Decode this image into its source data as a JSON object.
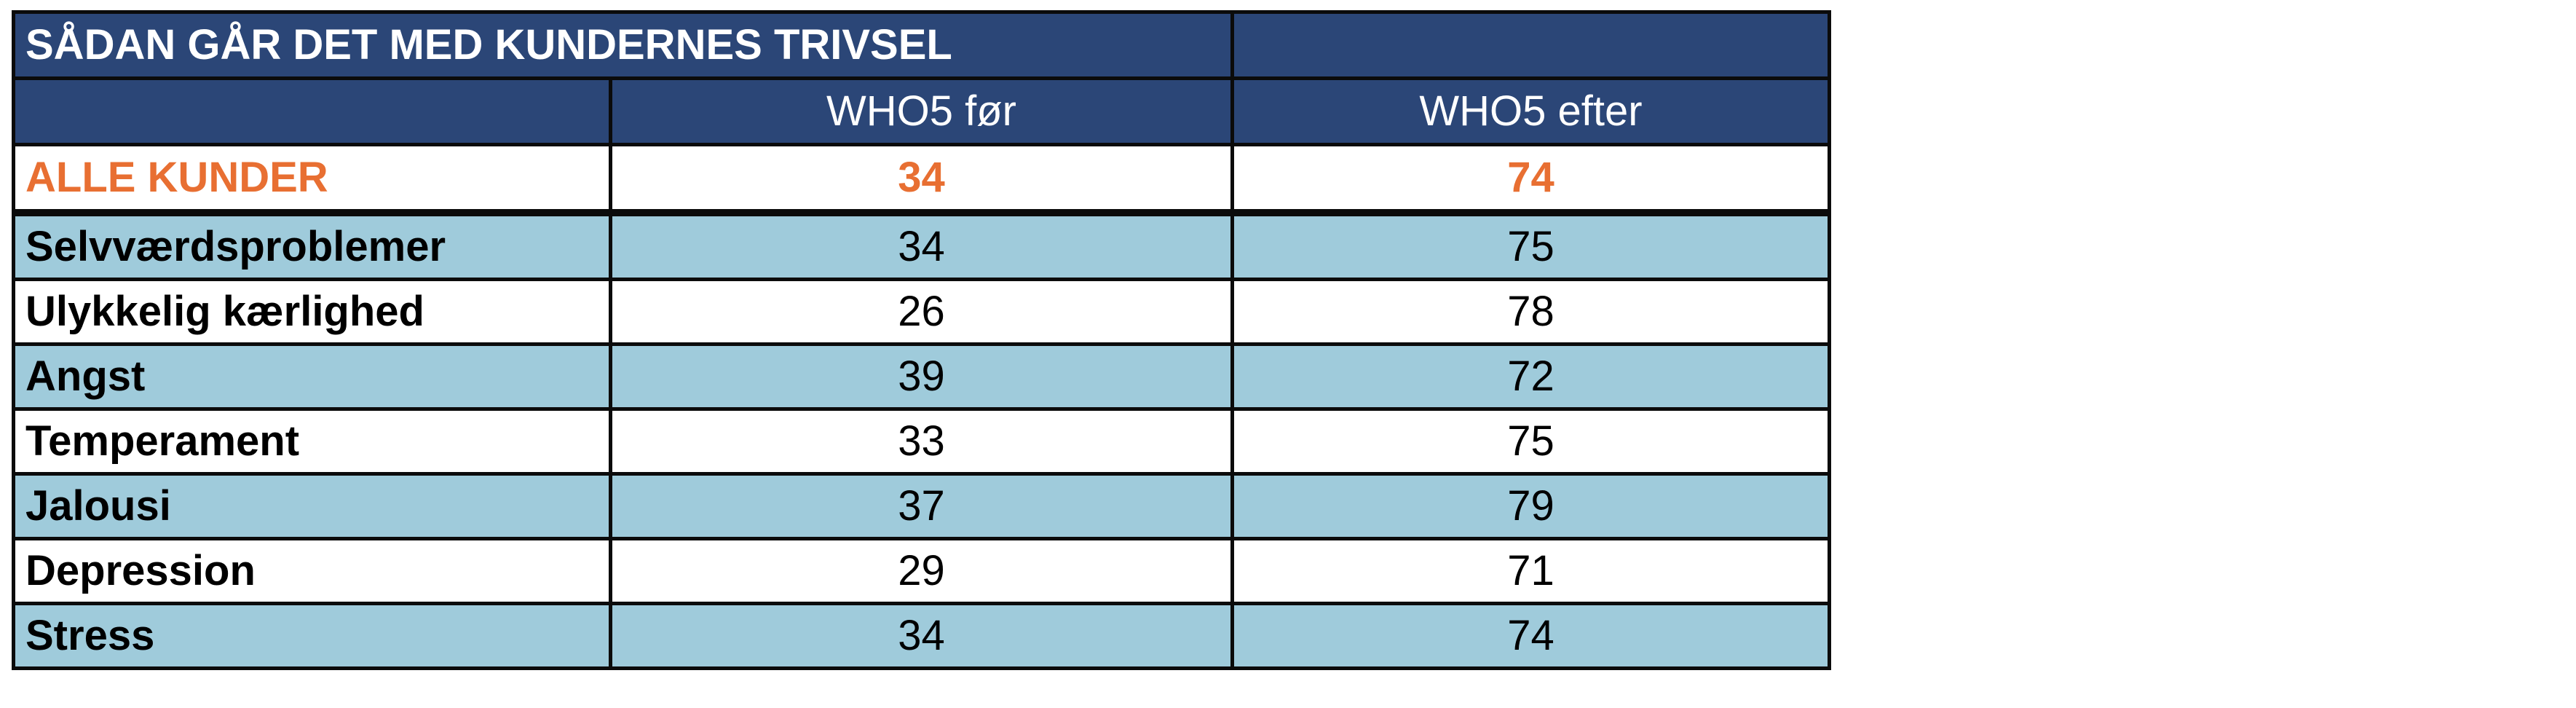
{
  "table": {
    "title": "SÅDAN GÅR DET MED KUNDERNES TRIVSEL",
    "columns": [
      "",
      "WHO5 før",
      "WHO5 efter"
    ],
    "summary": {
      "label": "ALLE KUNDER",
      "before": "34",
      "after": "74"
    },
    "rows": [
      {
        "label": "Selvværdsproblemer",
        "before": "34",
        "after": "75"
      },
      {
        "label": "Ulykkelig kærlighed",
        "before": "26",
        "after": "78"
      },
      {
        "label": "Angst",
        "before": "39",
        "after": "72"
      },
      {
        "label": "Temperament",
        "before": "33",
        "after": "75"
      },
      {
        "label": "Jalousi",
        "before": "37",
        "after": "79"
      },
      {
        "label": "Depression",
        "before": "29",
        "after": "71"
      },
      {
        "label": "Stress",
        "before": "34",
        "after": "74"
      }
    ]
  },
  "colors": {
    "header_bg": "#2b4677",
    "summary_text": "#e86f32",
    "shaded_row": "#9fcbdb"
  }
}
